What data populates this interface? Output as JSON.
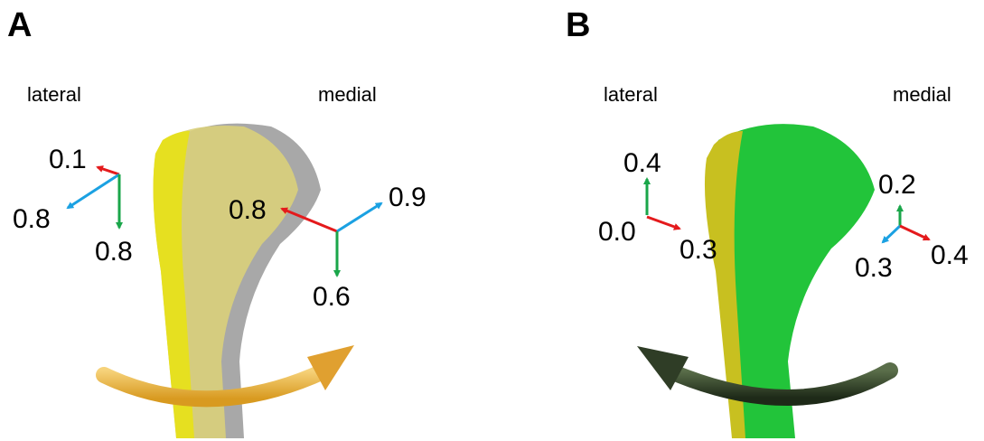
{
  "panels": [
    {
      "label": "A",
      "lateral": "lateral",
      "medial": "medial",
      "lateral_vectors": [
        "0.1",
        "0.8",
        "0.8"
      ],
      "medial_vectors": [
        "0.8",
        "0.9",
        "0.6"
      ]
    },
    {
      "label": "B",
      "lateral": "lateral",
      "medial": "medial",
      "lateral_vectors": [
        "0.4",
        "0.0",
        "0.3"
      ],
      "medial_vectors": [
        "0.2",
        "0.3",
        "0.4"
      ]
    }
  ]
}
